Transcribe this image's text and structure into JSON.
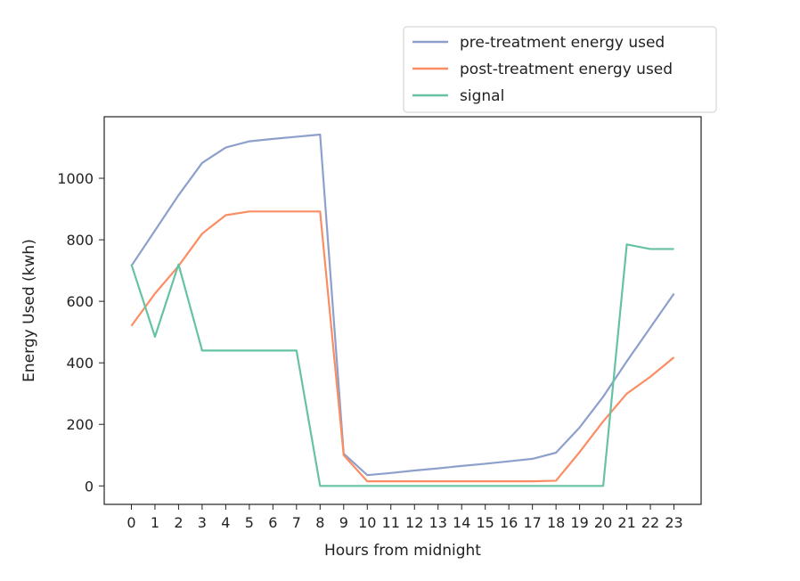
{
  "chart_data": {
    "type": "line",
    "title": "",
    "xlabel": "Hours from midnight",
    "ylabel": "Energy Used (kwh)",
    "x": [
      0,
      1,
      2,
      3,
      4,
      5,
      6,
      7,
      8,
      9,
      10,
      11,
      12,
      13,
      14,
      15,
      16,
      17,
      18,
      19,
      20,
      21,
      22,
      23
    ],
    "x_ticks": [
      "0",
      "1",
      "2",
      "3",
      "4",
      "5",
      "6",
      "7",
      "8",
      "9",
      "10",
      "11",
      "12",
      "13",
      "14",
      "15",
      "16",
      "17",
      "18",
      "19",
      "20",
      "21",
      "22",
      "23"
    ],
    "y_ticks": [
      "0",
      "200",
      "400",
      "600",
      "800",
      "1000"
    ],
    "xlim": [
      -1.15,
      24.15
    ],
    "ylim": [
      -60,
      1200
    ],
    "grid": false,
    "legend_position": "top-right, above plot",
    "series": [
      {
        "name": "pre-treatment energy used",
        "color": "#8da0cb",
        "values": [
          715,
          830,
          945,
          1050,
          1100,
          1120,
          1128,
          1135,
          1142,
          105,
          35,
          42,
          50,
          57,
          65,
          72,
          80,
          88,
          108,
          190,
          290,
          405,
          515,
          625
        ]
      },
      {
        "name": "post-treatment energy used",
        "color": "#fc8d62",
        "values": [
          520,
          625,
          715,
          820,
          880,
          892,
          892,
          892,
          892,
          100,
          15,
          15,
          15,
          15,
          15,
          15,
          15,
          15,
          17,
          110,
          210,
          300,
          355,
          418
        ]
      },
      {
        "name": "signal",
        "color": "#66c2a5",
        "values": [
          720,
          485,
          720,
          440,
          440,
          440,
          440,
          440,
          0,
          0,
          0,
          0,
          0,
          0,
          0,
          0,
          0,
          0,
          0,
          0,
          0,
          785,
          770,
          770
        ]
      }
    ]
  }
}
